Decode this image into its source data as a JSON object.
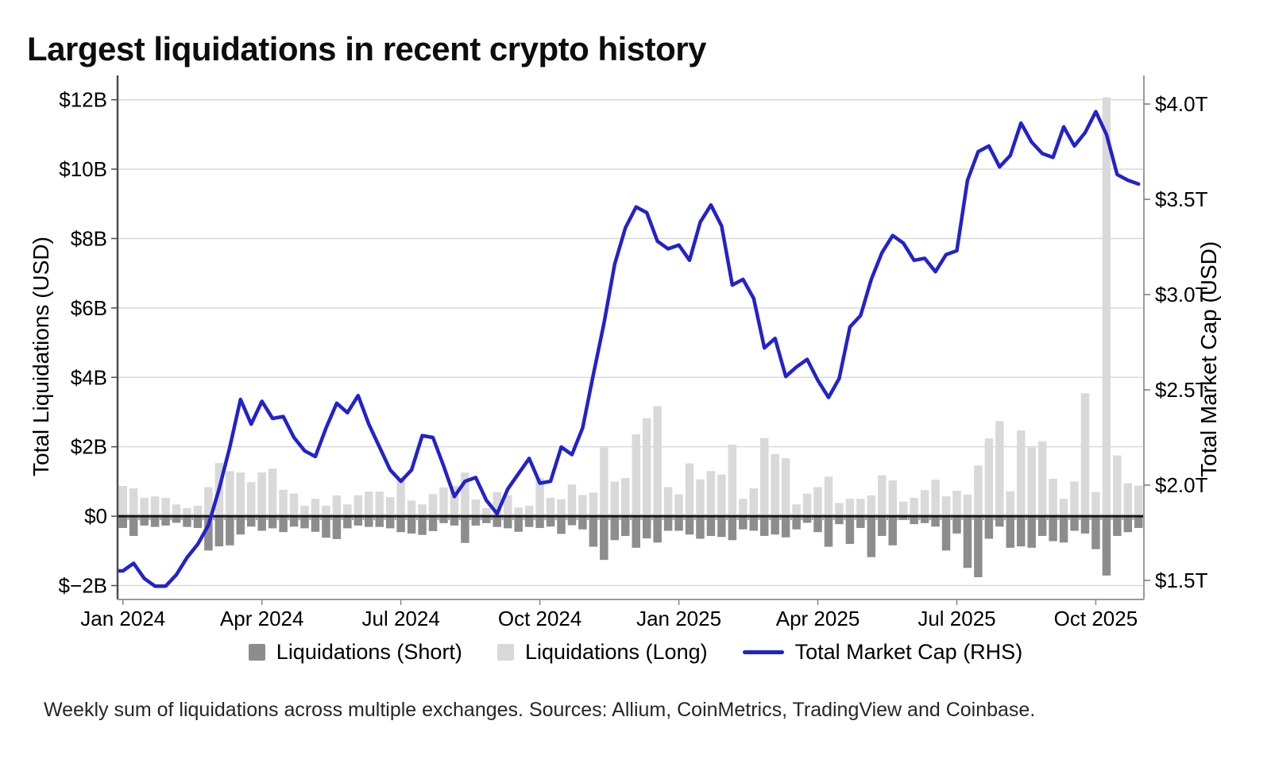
{
  "title": "Largest liquidations in recent crypto history",
  "caption": "Weekly sum of liquidations across multiple exchanges. Sources: Allium, CoinMetrics, TradingView and Coinbase.",
  "legend": {
    "short": "Liquidations (Short)",
    "long": "Liquidations (Long)",
    "mcap": "Total Market Cap (RHS)"
  },
  "chart_data": {
    "type": "combo-bar-line",
    "title": "Largest liquidations in recent crypto history",
    "x": {
      "start": "2024-01-01",
      "step_days": 7,
      "n_weeks": 96,
      "tick_weeks": [
        0,
        13,
        26,
        39,
        52,
        65,
        78,
        91
      ],
      "tick_labels": [
        "Jan 2024",
        "Apr 2024",
        "Jul 2024",
        "Oct 2024",
        "Jan 2025",
        "Apr 2025",
        "Jul 2025",
        "Oct 2025"
      ]
    },
    "left_axis": {
      "label": "Total Liquidations (USD)",
      "unit": "USD billions",
      "range": [
        -2.4,
        12.7
      ],
      "ticks": [
        {
          "v": 12,
          "label": "$12B"
        },
        {
          "v": 10,
          "label": "$10B"
        },
        {
          "v": 8,
          "label": "$8B"
        },
        {
          "v": 6,
          "label": "$6B"
        },
        {
          "v": 4,
          "label": "$4B"
        },
        {
          "v": 2,
          "label": "$2B"
        },
        {
          "v": 0,
          "label": "$0"
        },
        {
          "v": -2,
          "label": "$−2B"
        }
      ]
    },
    "right_axis": {
      "label": "Total Market Cap (USD)",
      "unit": "USD trillions",
      "range": [
        1.4,
        4.15
      ],
      "ticks": [
        {
          "v": 4.0,
          "label": "$4.0T"
        },
        {
          "v": 3.5,
          "label": "$3.5T"
        },
        {
          "v": 3.0,
          "label": "$3.0T"
        },
        {
          "v": 2.5,
          "label": "$2.5T"
        },
        {
          "v": 2.0,
          "label": "$2.0T"
        },
        {
          "v": 1.5,
          "label": "$1.5T"
        }
      ]
    },
    "grid": {
      "color": "#d9d9d9",
      "zero_color": "#141414"
    },
    "series": [
      {
        "name": "Liquidations (Short)",
        "type": "bar",
        "axis": "left",
        "color": "#8d8d8d",
        "values": [
          -0.34,
          -0.57,
          -0.27,
          -0.31,
          -0.27,
          -0.19,
          -0.31,
          -0.34,
          -0.99,
          -0.87,
          -0.84,
          -0.53,
          -0.3,
          -0.42,
          -0.35,
          -0.46,
          -0.3,
          -0.35,
          -0.45,
          -0.62,
          -0.66,
          -0.35,
          -0.27,
          -0.31,
          -0.31,
          -0.35,
          -0.46,
          -0.5,
          -0.54,
          -0.43,
          -0.2,
          -0.27,
          -0.77,
          -0.27,
          -0.2,
          -0.31,
          -0.35,
          -0.45,
          -0.31,
          -0.34,
          -0.3,
          -0.51,
          -0.26,
          -0.38,
          -0.88,
          -1.26,
          -0.69,
          -0.57,
          -0.91,
          -0.64,
          -0.76,
          -0.42,
          -0.42,
          -0.53,
          -0.65,
          -0.57,
          -0.6,
          -0.69,
          -0.38,
          -0.42,
          -0.57,
          -0.53,
          -0.61,
          -0.38,
          -0.19,
          -0.46,
          -0.88,
          -0.23,
          -0.8,
          -0.34,
          -1.18,
          -0.57,
          -0.84,
          -0.11,
          -0.23,
          -0.2,
          -0.3,
          -0.99,
          -0.5,
          -1.49,
          -1.76,
          -0.65,
          -0.3,
          -0.91,
          -0.87,
          -0.91,
          -0.57,
          -0.72,
          -0.76,
          -0.42,
          -0.5,
          -0.95,
          -1.71,
          -0.57,
          -0.46,
          -0.34
        ]
      },
      {
        "name": "Liquidations (Long)",
        "type": "bar",
        "axis": "left",
        "color": "#d9d9d9",
        "values": [
          0.87,
          0.8,
          0.53,
          0.57,
          0.53,
          0.34,
          0.23,
          0.3,
          0.84,
          1.53,
          1.3,
          1.26,
          0.98,
          1.26,
          1.37,
          0.76,
          0.65,
          0.3,
          0.5,
          0.3,
          0.6,
          0.34,
          0.6,
          0.71,
          0.71,
          0.55,
          1.1,
          0.45,
          0.34,
          0.64,
          0.83,
          0.87,
          1.26,
          0.48,
          0.23,
          0.69,
          0.6,
          0.25,
          0.3,
          1.1,
          0.53,
          0.49,
          0.91,
          0.61,
          0.68,
          1.98,
          1.0,
          1.1,
          2.36,
          2.82,
          3.17,
          0.84,
          0.63,
          1.52,
          1.06,
          1.3,
          1.2,
          2.06,
          0.5,
          0.8,
          2.25,
          1.79,
          1.67,
          0.34,
          0.65,
          0.84,
          1.14,
          0.38,
          0.5,
          0.5,
          0.6,
          1.18,
          1.03,
          0.42,
          0.53,
          0.75,
          1.05,
          0.57,
          0.73,
          0.62,
          1.46,
          2.24,
          2.74,
          0.72,
          2.47,
          1.98,
          2.15,
          1.08,
          0.5,
          1.0,
          3.54,
          0.7,
          12.07,
          1.75,
          0.95,
          0.88
        ]
      },
      {
        "name": "Total Market Cap (RHS)",
        "type": "line",
        "axis": "right",
        "color": "#2222cc",
        "values": [
          1.55,
          1.59,
          1.51,
          1.47,
          1.47,
          1.53,
          1.62,
          1.69,
          1.79,
          1.98,
          2.2,
          2.45,
          2.32,
          2.44,
          2.35,
          2.36,
          2.25,
          2.18,
          2.15,
          2.3,
          2.43,
          2.38,
          2.47,
          2.32,
          2.2,
          2.08,
          2.02,
          2.08,
          2.26,
          2.25,
          2.1,
          1.94,
          2.02,
          2.04,
          1.92,
          1.85,
          1.98,
          2.06,
          2.14,
          2.01,
          2.02,
          2.2,
          2.16,
          2.3,
          2.58,
          2.85,
          3.16,
          3.35,
          3.46,
          3.43,
          3.28,
          3.24,
          3.26,
          3.18,
          3.38,
          3.47,
          3.36,
          3.05,
          3.08,
          2.98,
          2.72,
          2.77,
          2.57,
          2.62,
          2.66,
          2.55,
          2.46,
          2.56,
          2.83,
          2.89,
          3.08,
          3.22,
          3.31,
          3.27,
          3.18,
          3.19,
          3.12,
          3.21,
          3.23,
          3.6,
          3.75,
          3.78,
          3.67,
          3.73,
          3.9,
          3.8,
          3.74,
          3.72,
          3.88,
          3.78,
          3.85,
          3.96,
          3.84,
          3.63,
          3.6,
          3.58
        ]
      }
    ],
    "legend_position": "bottom"
  }
}
